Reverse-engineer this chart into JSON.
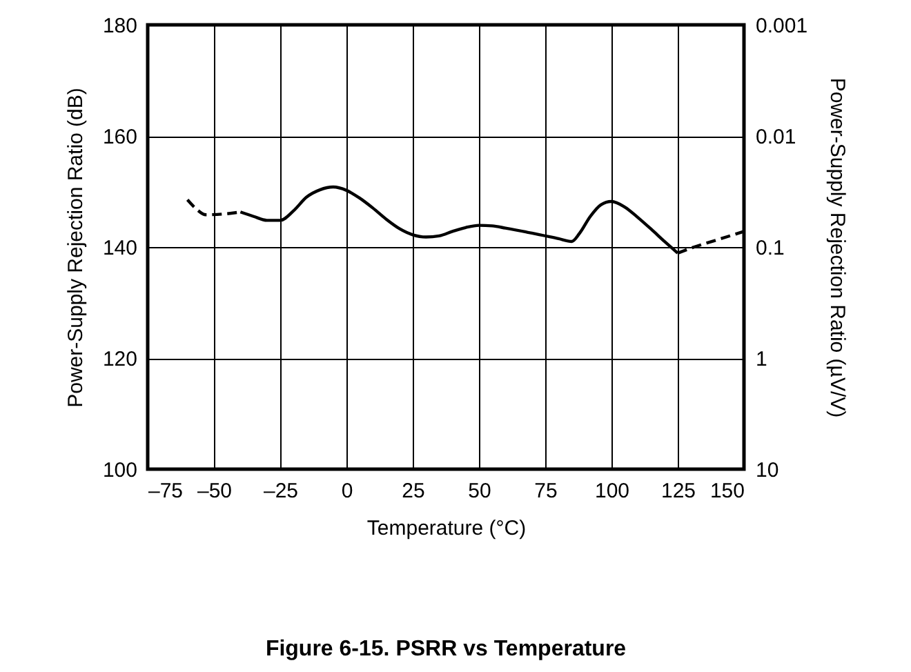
{
  "chart_data": {
    "type": "line",
    "title": "Figure 6-15. PSRR vs Temperature",
    "xlabel": "Temperature (°C)",
    "ylabel": "Power-Supply Rejection Ratio (dB)",
    "y2label": "Power-Supply Rejection Ratio (µV/V)",
    "xlim": [
      -75,
      150
    ],
    "xticks": [
      {
        "value": -75,
        "label": "–75"
      },
      {
        "value": -50,
        "label": "–50"
      },
      {
        "value": -25,
        "label": "–25"
      },
      0,
      25,
      50,
      75,
      100,
      125,
      150
    ],
    "ylim": [
      100,
      180
    ],
    "yticks": [
      100,
      120,
      140,
      160,
      180
    ],
    "y2lim": [
      10,
      0.001
    ],
    "y2ticks": [
      10,
      1,
      0.1,
      0.01,
      0.001
    ],
    "log": "y2",
    "grid": true,
    "series": [
      {
        "color": "#000000",
        "line_style": "dashed",
        "x": [
          -60,
          -57,
          -53,
          -45,
          -40
        ],
        "values": [
          148.5,
          147,
          145.8,
          146,
          146.3
        ]
      },
      {
        "color": "#000000",
        "line_style": "solid",
        "x": [
          -40,
          -35,
          -30,
          -25,
          -20,
          -15,
          -10,
          -5,
          0,
          5,
          10,
          15,
          20,
          25,
          30,
          35,
          40,
          45,
          50,
          55,
          60,
          70,
          80,
          85,
          88,
          92,
          96,
          100,
          105,
          110,
          115,
          120,
          125
        ],
        "values": [
          146.3,
          145.5,
          144.8,
          144.8,
          146.5,
          149,
          150.3,
          150.8,
          150.2,
          148.8,
          147,
          145,
          143.3,
          142.2,
          141.8,
          142,
          142.8,
          143.5,
          143.9,
          143.8,
          143.4,
          142.5,
          141.5,
          141,
          142.5,
          145.5,
          147.6,
          148.2,
          147.2,
          145.3,
          143.2,
          141,
          138.9
        ]
      },
      {
        "color": "#000000",
        "line_style": "dashed",
        "x": [
          125,
          130,
          140,
          150
        ],
        "values": [
          138.9,
          139.8,
          141.3,
          142.8
        ]
      }
    ]
  }
}
